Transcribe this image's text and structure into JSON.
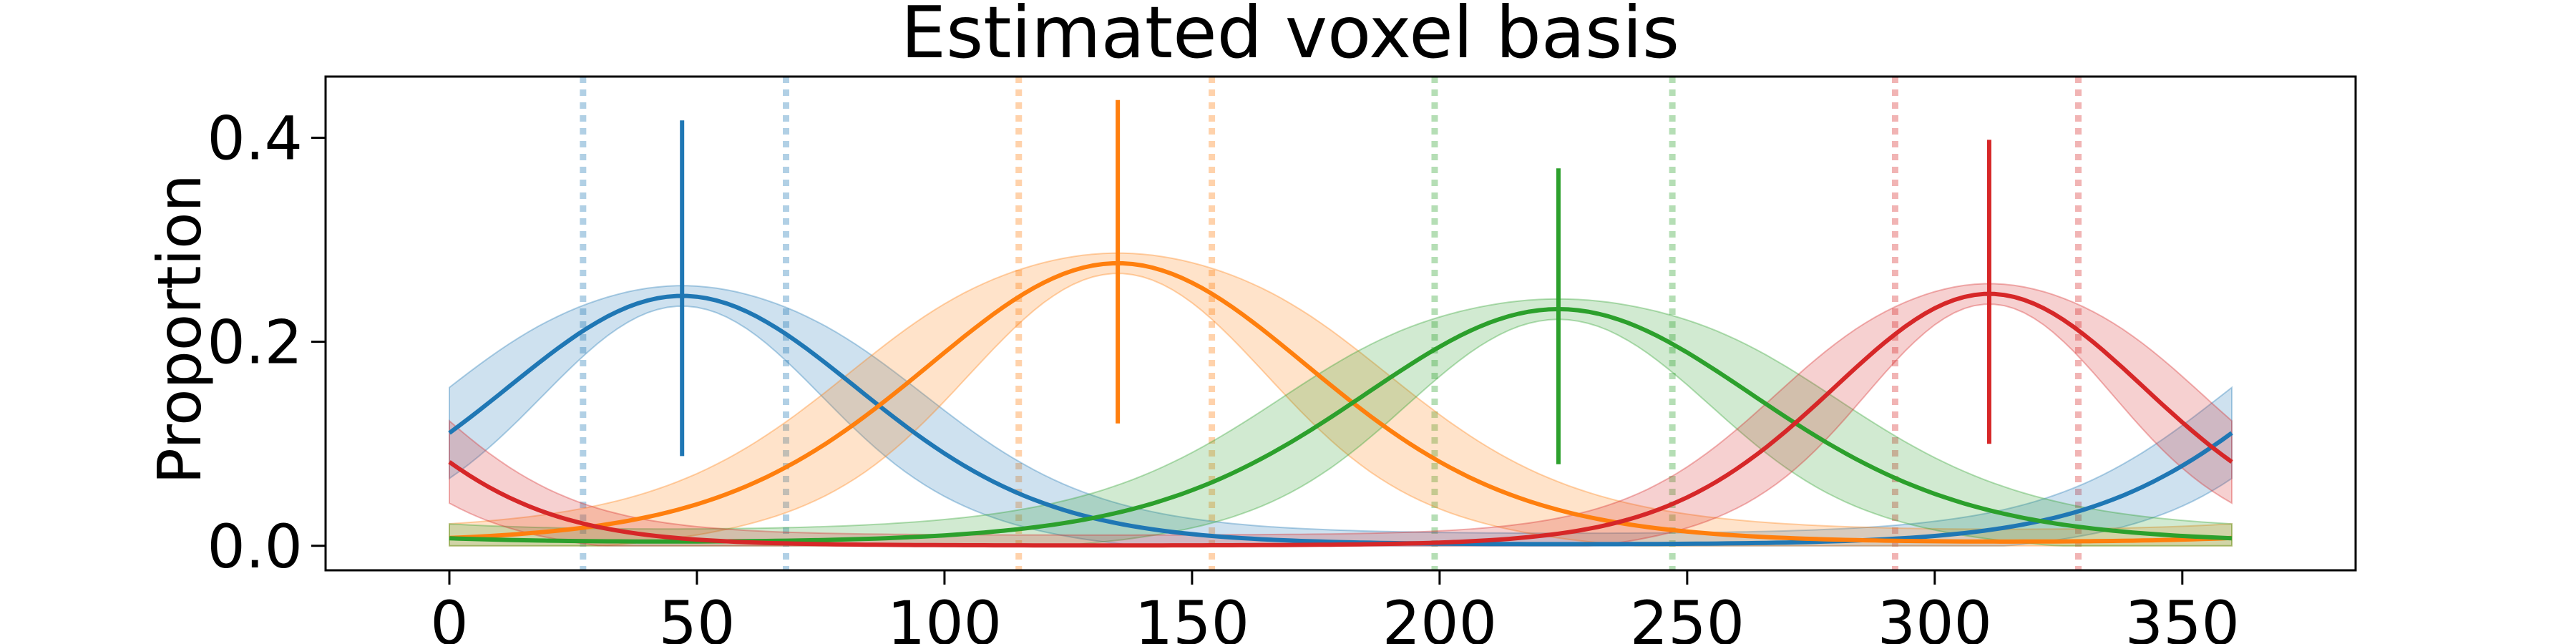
{
  "chart_data": {
    "type": "line",
    "title": "Estimated voxel basis",
    "xlabel": "",
    "ylabel": "Proportion",
    "xlim": [
      -25,
      385
    ],
    "ylim": [
      -0.024,
      0.46
    ],
    "xticks": [
      0,
      50,
      100,
      150,
      200,
      250,
      300,
      350
    ],
    "yticks": [
      0.0,
      0.2,
      0.4
    ],
    "ytick_labels": [
      "0.0",
      "0.2",
      "0.4"
    ],
    "grid": false,
    "legend": "none",
    "curve_model": "von Mises tuning curve, circular period 360, sampled x = 0..360",
    "series": [
      {
        "color": "#1f77b4",
        "peak_location": 47,
        "peak_height": 0.245,
        "kappa": 2.5,
        "band_half_width_at_peak": 0.01,
        "band_half_width_at_flank": 0.045,
        "peak_error_bar": [
          0.088,
          0.417
        ],
        "bounds_lines": [
          27,
          68
        ]
      },
      {
        "color": "#ff7f0e",
        "peak_location": 135,
        "peak_height": 0.277,
        "kappa": 2.1,
        "band_half_width_at_peak": 0.01,
        "band_half_width_at_flank": 0.055,
        "peak_error_bar": [
          0.12,
          0.437
        ],
        "bounds_lines": [
          115,
          154
        ]
      },
      {
        "color": "#2ca02c",
        "peak_location": 224,
        "peak_height": 0.232,
        "kappa": 2.0,
        "band_half_width_at_peak": 0.01,
        "band_half_width_at_flank": 0.05,
        "peak_error_bar": [
          0.08,
          0.37
        ],
        "bounds_lines": [
          199,
          247
        ]
      },
      {
        "color": "#d62728",
        "peak_location": 311,
        "peak_height": 0.247,
        "kappa": 3.2,
        "band_half_width_at_peak": 0.01,
        "band_half_width_at_flank": 0.045,
        "peak_error_bar": [
          0.1,
          0.398
        ],
        "bounds_lines": [
          292,
          329
        ]
      }
    ]
  }
}
